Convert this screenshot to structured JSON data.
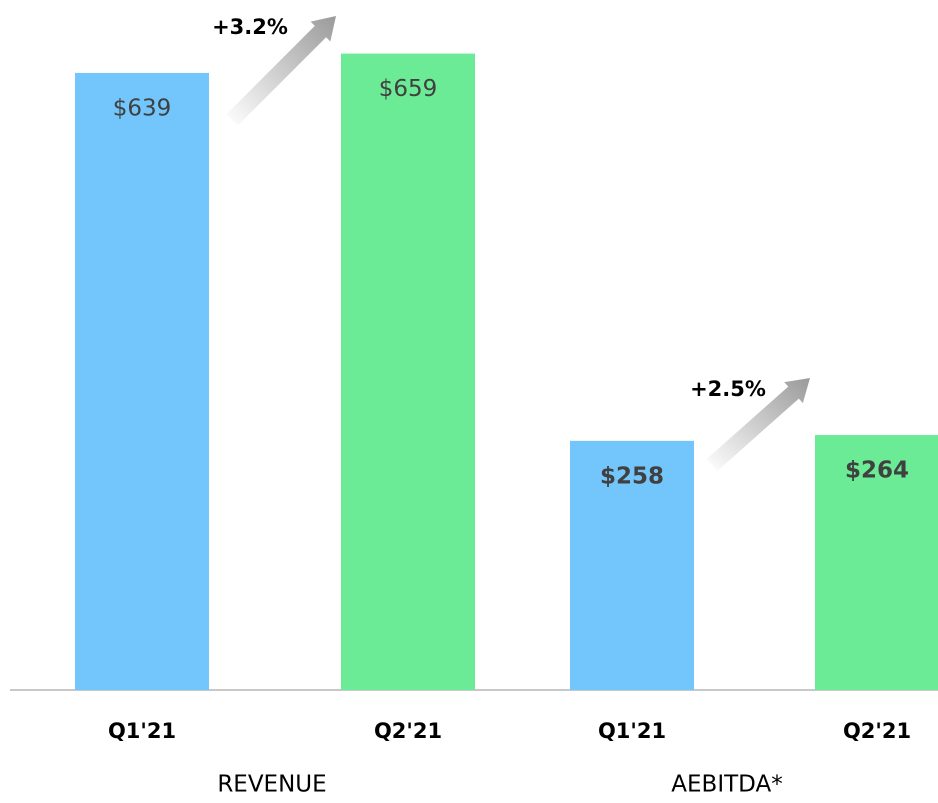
{
  "chart_data": [
    {
      "type": "bar",
      "title": "REVENUE",
      "categories": [
        "Q1'21",
        "Q2'21"
      ],
      "values": [
        639,
        659
      ],
      "value_labels": [
        "$639",
        "$659"
      ],
      "colors": [
        "#73c6fb",
        "#6ceb96"
      ],
      "annotation": "+3.2%",
      "value_label_bold": false,
      "ylim": [
        0,
        700
      ]
    },
    {
      "type": "bar",
      "title": "AEBITDA*",
      "categories": [
        "Q1'21",
        "Q2'21"
      ],
      "values": [
        258,
        264
      ],
      "value_labels": [
        "$258",
        "$264"
      ],
      "colors": [
        "#73c6fb",
        "#6ceb96"
      ],
      "annotation": "+2.5%",
      "value_label_bold": true,
      "ylim": [
        0,
        700
      ]
    }
  ]
}
